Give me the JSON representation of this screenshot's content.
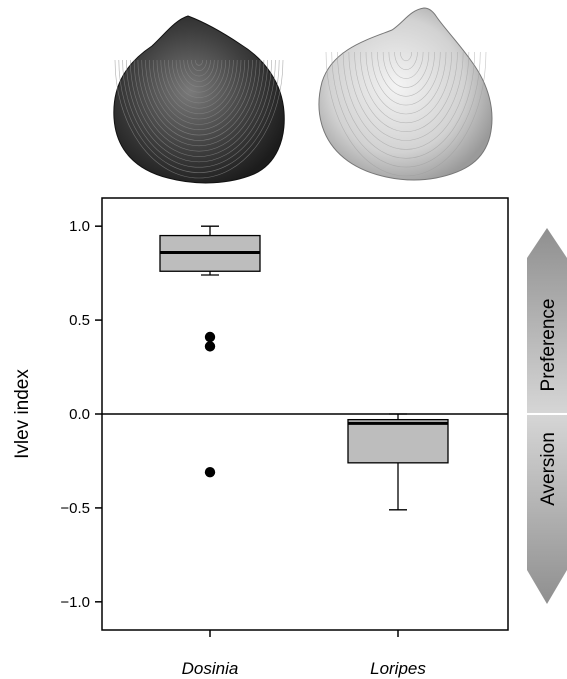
{
  "chart_data": {
    "type": "box",
    "ylabel": "Ivlev index",
    "ylim": [
      -1.15,
      1.15
    ],
    "yticks": [
      -1.0,
      -0.5,
      0.0,
      0.5,
      1.0
    ],
    "ytick_labels": [
      "−1.0",
      "−0.5",
      "0.0",
      "0.5",
      "1.0"
    ],
    "reference_line": 0.0,
    "categories": [
      "Dosinia",
      "Loripes"
    ],
    "boxes": [
      {
        "name": "Dosinia",
        "whisker_low": 0.74,
        "q1": 0.76,
        "median": 0.86,
        "q3": 0.95,
        "whisker_high": 1.0,
        "outliers": [
          0.41,
          0.36,
          -0.31
        ]
      },
      {
        "name": "Loripes",
        "whisker_low": -0.51,
        "q1": -0.26,
        "median": -0.05,
        "q3": -0.03,
        "whisker_high": 0.0,
        "outliers": []
      }
    ],
    "side_band": {
      "upper_label": "Preference",
      "lower_label": "Aversion"
    },
    "shell_images": [
      {
        "name": "dosinia-shell",
        "tone": "dark"
      },
      {
        "name": "loripes-shell",
        "tone": "light"
      }
    ],
    "colors": {
      "box_fill": "#bdbdbd",
      "arrow_light": "#d6d6d6",
      "arrow_dark": "#8f8f8f",
      "points": "#000000"
    }
  }
}
